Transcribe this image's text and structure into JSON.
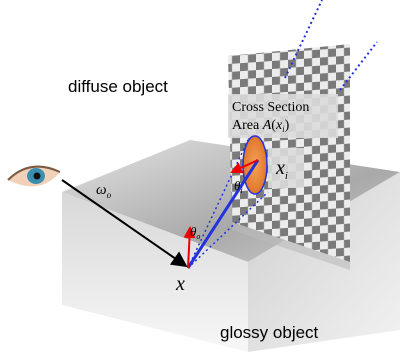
{
  "labels": {
    "diffuse": "diffuse object",
    "glossy": "glossy object",
    "cross_section": "Cross Section",
    "area": {
      "word": "Area",
      "symbol": "A",
      "open": "(",
      "var": "x",
      "sub": "i",
      "close": ")"
    },
    "xi": {
      "var": "x",
      "sub": "i"
    },
    "omega": {
      "var": "ω",
      "sub": "o"
    },
    "theta_i": {
      "var": "θ",
      "sub": "i"
    },
    "theta_o": {
      "var": "θ",
      "sub": "o"
    },
    "point": "x"
  }
}
